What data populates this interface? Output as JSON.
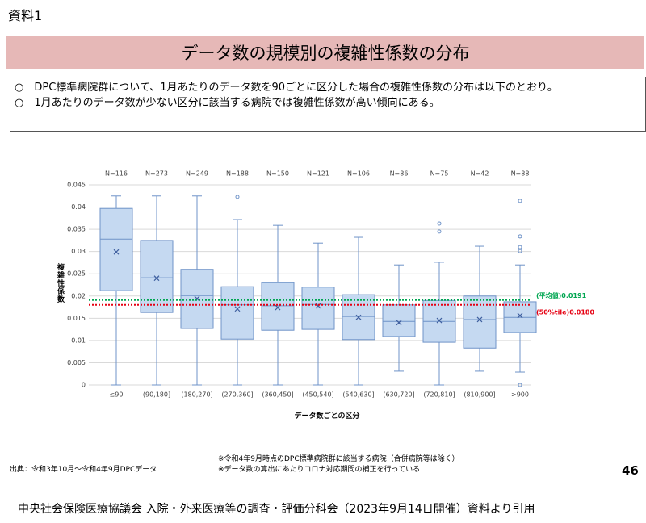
{
  "label": "資料1",
  "title": "データ数の規模別の複雑性係数の分布",
  "bullets": [
    "○　DPC標準病院群について、1月あたりのデータ数を90ごとに区分した場合の複雑性係数の分布は以下のとおり。",
    "○　1月あたりのデータ数が少ない区分に該当する病院では複雑性係数が高い傾向にある。"
  ],
  "chart_data": {
    "type": "box",
    "y_label": "複雑性係数",
    "x_label": "データ数ごとの区分",
    "categories": [
      "≤90",
      "(90,180]",
      "(180,270]",
      "(270,360]",
      "(360,450]",
      "(450,540]",
      "(540,630]",
      "(630,720]",
      "(720,810]",
      "(810,900]",
      ">900"
    ],
    "n_labels": [
      "N=116",
      "N=273",
      "N=249",
      "N=188",
      "N=150",
      "N=121",
      "N=106",
      "N=86",
      "N=75",
      "N=42",
      "N=88"
    ],
    "min": [
      0,
      0,
      0,
      0,
      0,
      0,
      0,
      0.0031,
      0,
      0.0031,
      0.0029
    ],
    "q1": [
      0.0212,
      0.0163,
      0.0127,
      0.0103,
      0.0123,
      0.0125,
      0.0102,
      0.0109,
      0.0096,
      0.0083,
      0.0118
    ],
    "median": [
      0.0328,
      0.0241,
      0.0201,
      0.018,
      0.0178,
      0.0181,
      0.0154,
      0.0143,
      0.0143,
      0.0147,
      0.0152
    ],
    "q3": [
      0.0397,
      0.0325,
      0.026,
      0.0221,
      0.023,
      0.022,
      0.0203,
      0.018,
      0.019,
      0.02,
      0.0187
    ],
    "max": [
      0.0425,
      0.0425,
      0.0425,
      0.0372,
      0.0359,
      0.0319,
      0.0332,
      0.027,
      0.0276,
      0.0312,
      0.027
    ],
    "mean": [
      0.0299,
      0.024,
      0.0194,
      0.0171,
      0.0174,
      0.0178,
      0.0152,
      0.014,
      0.0145,
      0.0147,
      0.0156
    ],
    "outliers": [
      [],
      [],
      [],
      [
        0.0423
      ],
      [],
      [],
      [],
      [],
      [
        0.0363,
        0.0345
      ],
      [],
      [
        0.0414,
        0.0334,
        0.031,
        0.0301,
        0
      ]
    ],
    "color": "#c5d9f1",
    "edge_color": "#6f93c8",
    "ylim": [
      0,
      0.045
    ],
    "yticks": [
      0,
      0.005,
      0.01,
      0.015,
      0.02,
      0.025,
      0.03,
      0.035,
      0.04,
      0.045
    ],
    "grid": true,
    "reference_lines": [
      {
        "label": "(平均値)0.0191",
        "value": 0.0191,
        "color": "#00a651"
      },
      {
        "label": "(50%tile)0.0180",
        "value": 0.018,
        "color": "#e60012"
      }
    ]
  },
  "source": "出典：令和3年10月～令和4年9月DPCデータ",
  "notes": [
    "※令和4年9月時点のDPC標準病院群に該当する病院（合併病院等は除く）",
    "※データ数の算出にあたりコロナ対応期間の補正を行っている"
  ],
  "page_number": "46",
  "citation": "中央社会保険医療協議会 入院・外来医療等の調査・評価分科会（2023年9月14日開催）資料より引用"
}
